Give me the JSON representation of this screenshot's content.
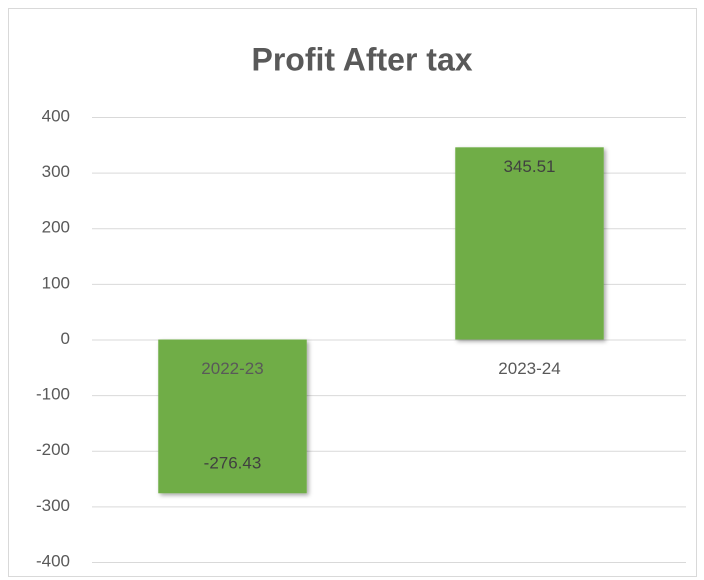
{
  "chart_data": {
    "type": "bar",
    "title": "Profit After tax",
    "categories": [
      "2022-23",
      "2023-24"
    ],
    "values": [
      -276.43,
      345.51
    ],
    "color": "#70ad47",
    "ylim": [
      -400,
      400
    ],
    "yticks": [
      -400,
      -300,
      -200,
      -100,
      0,
      100,
      200,
      300,
      400
    ],
    "grid": true
  }
}
